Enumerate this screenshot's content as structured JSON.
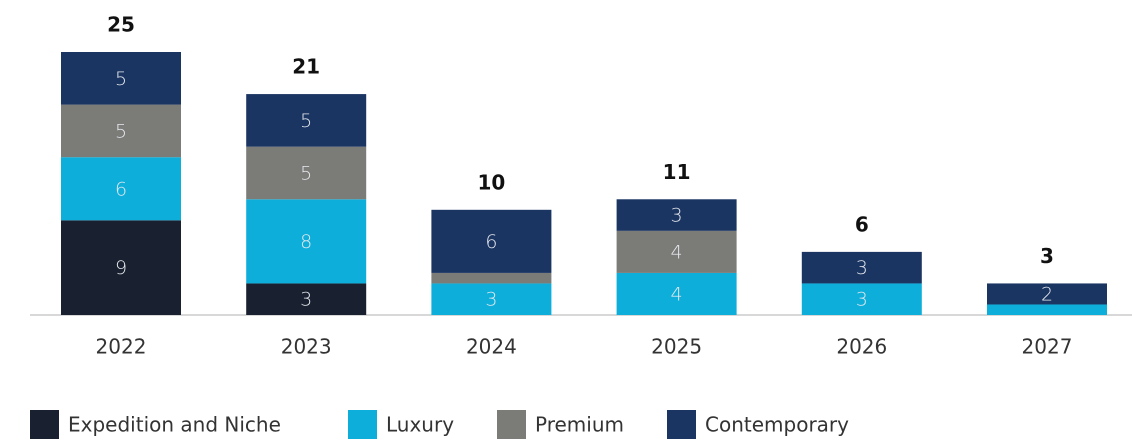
{
  "chart_data": {
    "type": "stacked_bar",
    "categories": [
      "2022",
      "2023",
      "2024",
      "2025",
      "2026",
      "2027"
    ],
    "series": [
      {
        "name": "Expedition and Niche",
        "color": "#19202f",
        "values": [
          9,
          3,
          0,
          0,
          0,
          0
        ]
      },
      {
        "name": "Luxury",
        "color": "#0eaedb",
        "values": [
          6,
          8,
          3,
          4,
          3,
          1
        ]
      },
      {
        "name": "Premium",
        "color": "#7b7b77",
        "values": [
          5,
          5,
          1,
          4,
          0,
          0
        ]
      },
      {
        "name": "Contemporary",
        "color": "#1b3562",
        "values": [
          5,
          5,
          6,
          3,
          3,
          2
        ]
      }
    ],
    "totals": [
      25,
      21,
      10,
      11,
      6,
      3
    ]
  }
}
